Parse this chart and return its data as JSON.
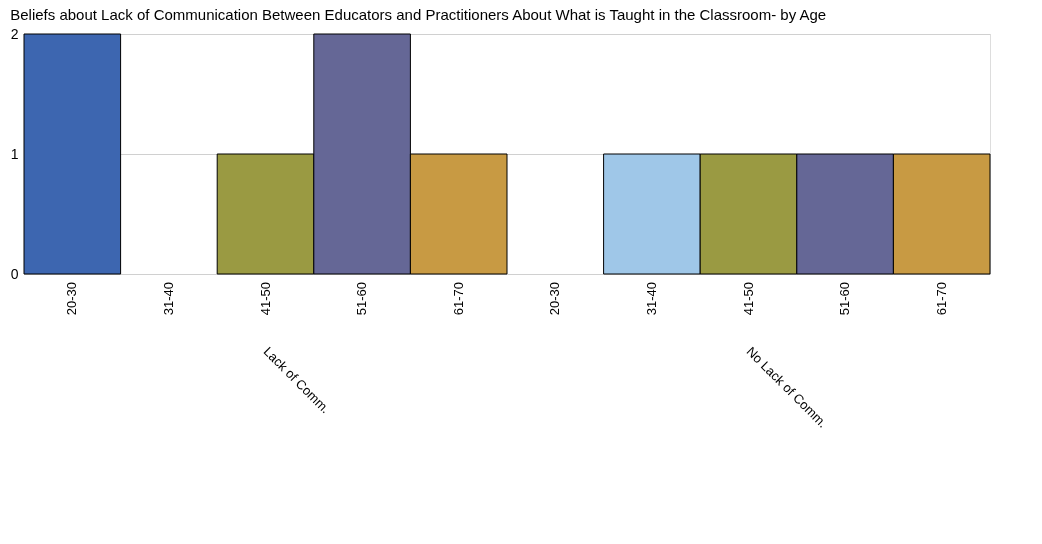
{
  "chart_data": {
    "type": "bar",
    "title": "Beliefs about Lack of Communication Between Educators and Practitioners About What is Taught in the Classroom- by Age",
    "categories": [
      "Lack of Comm.",
      "No Lack of Comm."
    ],
    "series": [
      {
        "name": "20-30",
        "color": "#3d66b0",
        "values": [
          2,
          0
        ]
      },
      {
        "name": "31-40",
        "color": "#9fc7e8",
        "values": [
          0,
          1
        ]
      },
      {
        "name": "41-50",
        "color": "#9a9a42",
        "values": [
          1,
          1
        ]
      },
      {
        "name": "51-60",
        "color": "#656796",
        "values": [
          2,
          1
        ]
      },
      {
        "name": "61-70",
        "color": "#c89a43",
        "values": [
          1,
          1
        ]
      }
    ],
    "ylim": [
      0,
      2
    ],
    "yticks": [
      0,
      1,
      2
    ],
    "grid": "y",
    "legend": false
  }
}
